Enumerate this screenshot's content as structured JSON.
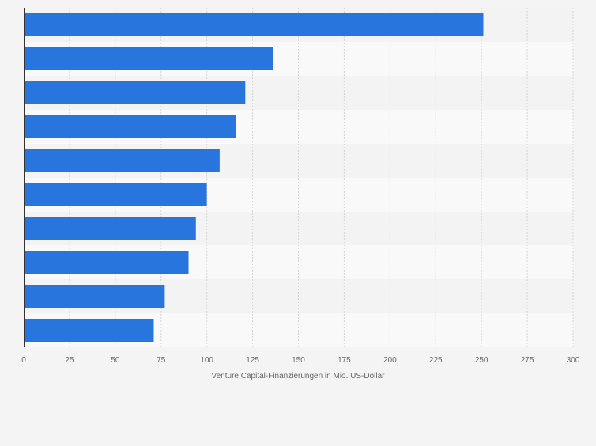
{
  "chart_data": {
    "type": "bar",
    "orientation": "horizontal",
    "categories": [
      "",
      "",
      "",
      "",
      "",
      "",
      "",
      "",
      "",
      ""
    ],
    "values": [
      251,
      136,
      121,
      116,
      107,
      100,
      94,
      90,
      77,
      71
    ],
    "xlabel": "Venture Capital-Finanzierungen in Mio. US-Dollar",
    "ylabel": "",
    "xlim": [
      0,
      300
    ],
    "xticks": [
      0,
      25,
      50,
      75,
      100,
      125,
      150,
      175,
      200,
      225,
      250,
      275,
      300
    ],
    "grid": "vertical",
    "legend": "none",
    "colors": {
      "bar": "#2876dd",
      "background": "#f4f4f4",
      "band_light": "#f9f9f9",
      "band_dark": "#f3f3f3",
      "grid": "#d6d6d6",
      "axis": "#333333",
      "tick_text": "#666666"
    }
  }
}
